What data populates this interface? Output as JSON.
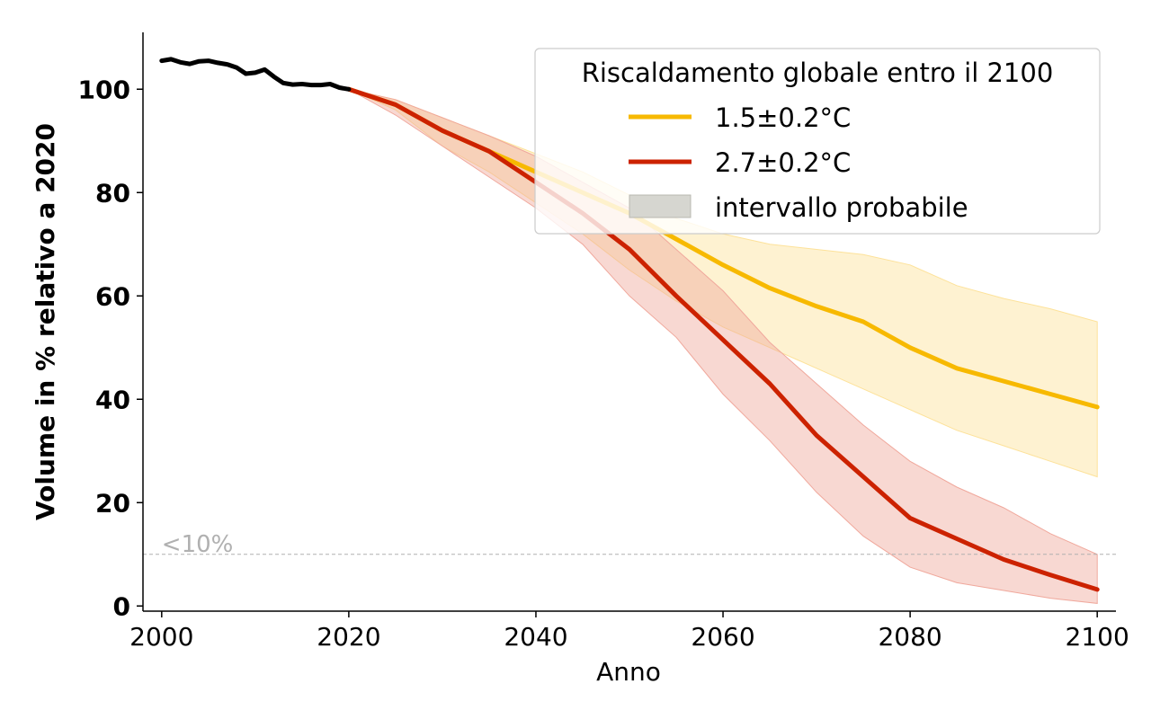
{
  "chart_data": {
    "type": "line",
    "title": "",
    "xlabel": "Anno",
    "ylabel": "Volume in % relativo a 2020",
    "xlim": [
      1998,
      2102
    ],
    "ylim": [
      -1,
      111
    ],
    "xticks": [
      2000,
      2020,
      2040,
      2060,
      2080,
      2100
    ],
    "yticks": [
      0,
      20,
      40,
      60,
      80,
      100
    ],
    "threshold": {
      "y": 10,
      "label": "<10%",
      "color": "#b0b0b0"
    },
    "legend": {
      "title": "Riscaldamento globale entro il 2100",
      "position": "top-right",
      "band_label": "intervallo probabile",
      "band_color": "#d6d6d0"
    },
    "historical": {
      "name": "historical",
      "color": "#000000",
      "x": [
        2000,
        2001,
        2002,
        2003,
        2004,
        2005,
        2006,
        2007,
        2008,
        2009,
        2010,
        2011,
        2012,
        2013,
        2014,
        2015,
        2016,
        2017,
        2018,
        2019,
        2020
      ],
      "y": [
        105.5,
        105.8,
        105.2,
        104.9,
        105.4,
        105.5,
        105.1,
        104.8,
        104.2,
        103.0,
        103.2,
        103.8,
        102.4,
        101.2,
        100.9,
        101.0,
        100.8,
        100.8,
        101.0,
        100.3,
        100.0
      ]
    },
    "series": [
      {
        "name": "1.5±0.2°C",
        "color": "#f7b900",
        "band_color": "#fde29a",
        "x": [
          2020,
          2025,
          2030,
          2035,
          2040,
          2045,
          2050,
          2055,
          2060,
          2065,
          2070,
          2075,
          2080,
          2085,
          2090,
          2095,
          2100
        ],
        "y": [
          100,
          97,
          92,
          88,
          84,
          80,
          76,
          71,
          66,
          61.5,
          58,
          55,
          50,
          46,
          43.5,
          41,
          38.5
        ],
        "lower": [
          100,
          96,
          89,
          84,
          78,
          72,
          65,
          59,
          54,
          50,
          46,
          42,
          38,
          34,
          31,
          28,
          25
        ],
        "upper": [
          100,
          98,
          94.5,
          91,
          87.5,
          84,
          79.5,
          75,
          72,
          70,
          69,
          68,
          66,
          62,
          59.5,
          57.5,
          55
        ]
      },
      {
        "name": "2.7±0.2°C",
        "color": "#cc2200",
        "band_color": "#f0a89c",
        "x": [
          2020,
          2025,
          2030,
          2035,
          2040,
          2045,
          2050,
          2055,
          2060,
          2065,
          2070,
          2075,
          2080,
          2085,
          2090,
          2095,
          2100
        ],
        "y": [
          100,
          97,
          92,
          88,
          82,
          76,
          69,
          60,
          51.5,
          43,
          33,
          25,
          17,
          13,
          9,
          6,
          3.2
        ],
        "lower": [
          100,
          95,
          89,
          83,
          77,
          70,
          60,
          52,
          41,
          32,
          22,
          13.5,
          7.5,
          4.5,
          3,
          1.5,
          0.5
        ],
        "upper": [
          100,
          98,
          94.5,
          91,
          87,
          82,
          77,
          69,
          61,
          51,
          43,
          35,
          28,
          23,
          19,
          14,
          10
        ]
      }
    ]
  }
}
